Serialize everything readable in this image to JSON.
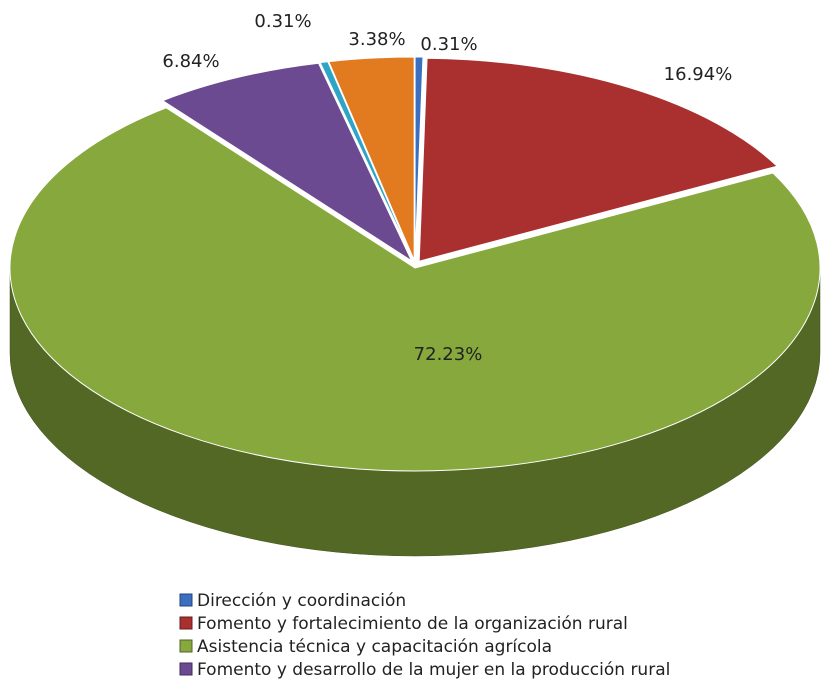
{
  "chart_data": {
    "type": "pie3d",
    "categories": [
      "Dirección y coordinación",
      "Fomento y fortalecimiento de la organización rural",
      "Asistencia técnica y capacitación agrícola",
      "Fomento y desarrollo de la mujer en la producción rural",
      null,
      null
    ],
    "values": [
      0.31,
      16.94,
      72.23,
      6.84,
      0.31,
      3.38
    ],
    "value_labels": [
      "0.31%",
      "16.94%",
      "72.23%",
      "6.84%",
      "0.31%",
      "3.38%"
    ],
    "colors": [
      "#3b6fc0",
      "#a9302f",
      "#86a83c",
      "#6b4a92",
      "#2ea4c6",
      "#e27a20"
    ],
    "legend": "bottom"
  }
}
